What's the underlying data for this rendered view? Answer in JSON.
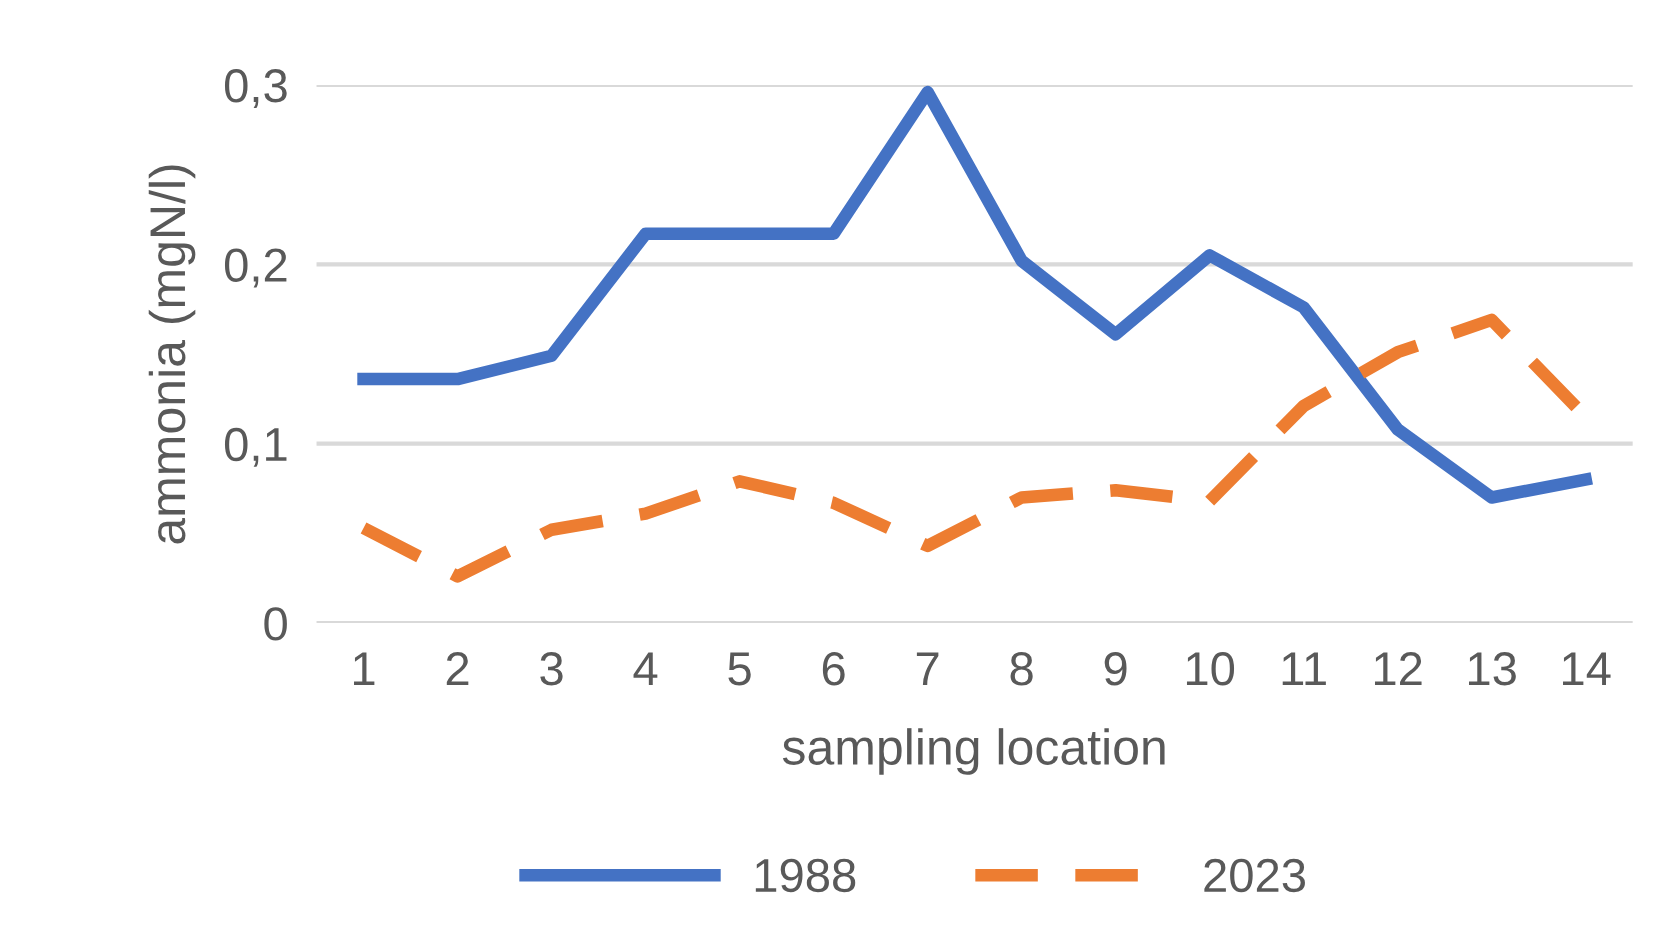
{
  "chart_data": {
    "type": "line",
    "xlabel": "sampling location",
    "ylabel": "ammonia (mgN/l)",
    "categories": [
      "1",
      "2",
      "3",
      "4",
      "5",
      "6",
      "7",
      "8",
      "9",
      "10",
      "11",
      "12",
      "13",
      "14"
    ],
    "series": [
      {
        "name": "1988",
        "color": "#4472c4",
        "line_style": "solid",
        "values": [
          0.136,
          0.136,
          0.149,
          0.217,
          0.217,
          0.217,
          0.296,
          0.202,
          0.161,
          0.205,
          0.176,
          0.108,
          0.07,
          0.08
        ]
      },
      {
        "name": "2023",
        "color": "#ed7d31",
        "line_style": "dashed",
        "values": [
          0.053,
          0.026,
          0.052,
          0.061,
          0.079,
          0.067,
          0.043,
          0.07,
          0.074,
          0.068,
          0.121,
          0.151,
          0.169,
          0.115
        ]
      }
    ],
    "ylim": [
      0,
      0.3
    ],
    "yticks": [
      {
        "value": 0,
        "label": "0"
      },
      {
        "value": 0.1,
        "label": "0,1"
      },
      {
        "value": 0.2,
        "label": "0,2"
      },
      {
        "value": 0.3,
        "label": "0,3"
      }
    ],
    "grid": "y",
    "legend": "bottom",
    "marker": "none"
  }
}
